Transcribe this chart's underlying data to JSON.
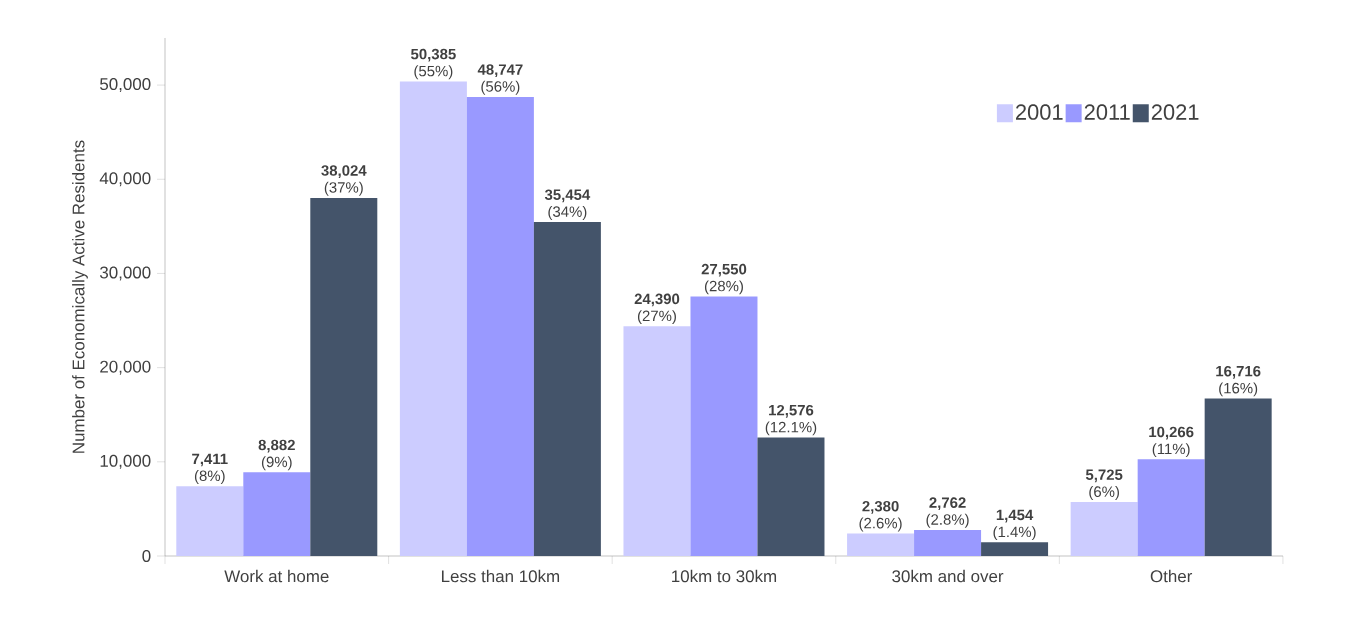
{
  "chart_data": {
    "type": "bar",
    "ylabel": "Number of Economically Active Residents",
    "categories": [
      "Work at home",
      "Less than 10km",
      "10km to 30km",
      "30km and over",
      "Other"
    ],
    "series": [
      {
        "name": "2001",
        "color": "#ccccff",
        "values": [
          7411,
          50385,
          24390,
          2380,
          5725
        ],
        "value_labels": [
          "**7,411** (8%)",
          "**50,385** (55%)",
          "**24,390** (27%)",
          "**2,380** (2.6%)",
          "**5,725** (6%)"
        ]
      },
      {
        "name": "2011",
        "color": "#9999ff",
        "values": [
          8882,
          48747,
          27550,
          2762,
          10266
        ],
        "value_labels": [
          "**8,882** (9%)",
          "**48,747** (56%)",
          "**27,550** (28%)",
          "**2,762** (2.8%)",
          "**10,266** (11%)"
        ]
      },
      {
        "name": "2021",
        "color": "#44546a",
        "values": [
          38024,
          35454,
          12576,
          1454,
          16716
        ],
        "value_labels": [
          "**38,024** (37%)",
          "**35,454** (34%)",
          "**12,576** (12.1%)",
          "**1,454** (1.4%)",
          "**16,716** (16%)"
        ]
      }
    ],
    "ylim": [
      0,
      55000
    ],
    "yticks": [
      0,
      {
        "value": 10000,
        "label": "10,000"
      },
      {
        "value": 20000,
        "label": "20,000"
      },
      {
        "value": 30000,
        "label": "30,000"
      },
      {
        "value": 40000,
        "label": "40,000"
      },
      {
        "value": 50000,
        "label": "50,000"
      }
    ],
    "grid": false,
    "legend": "top right"
  }
}
